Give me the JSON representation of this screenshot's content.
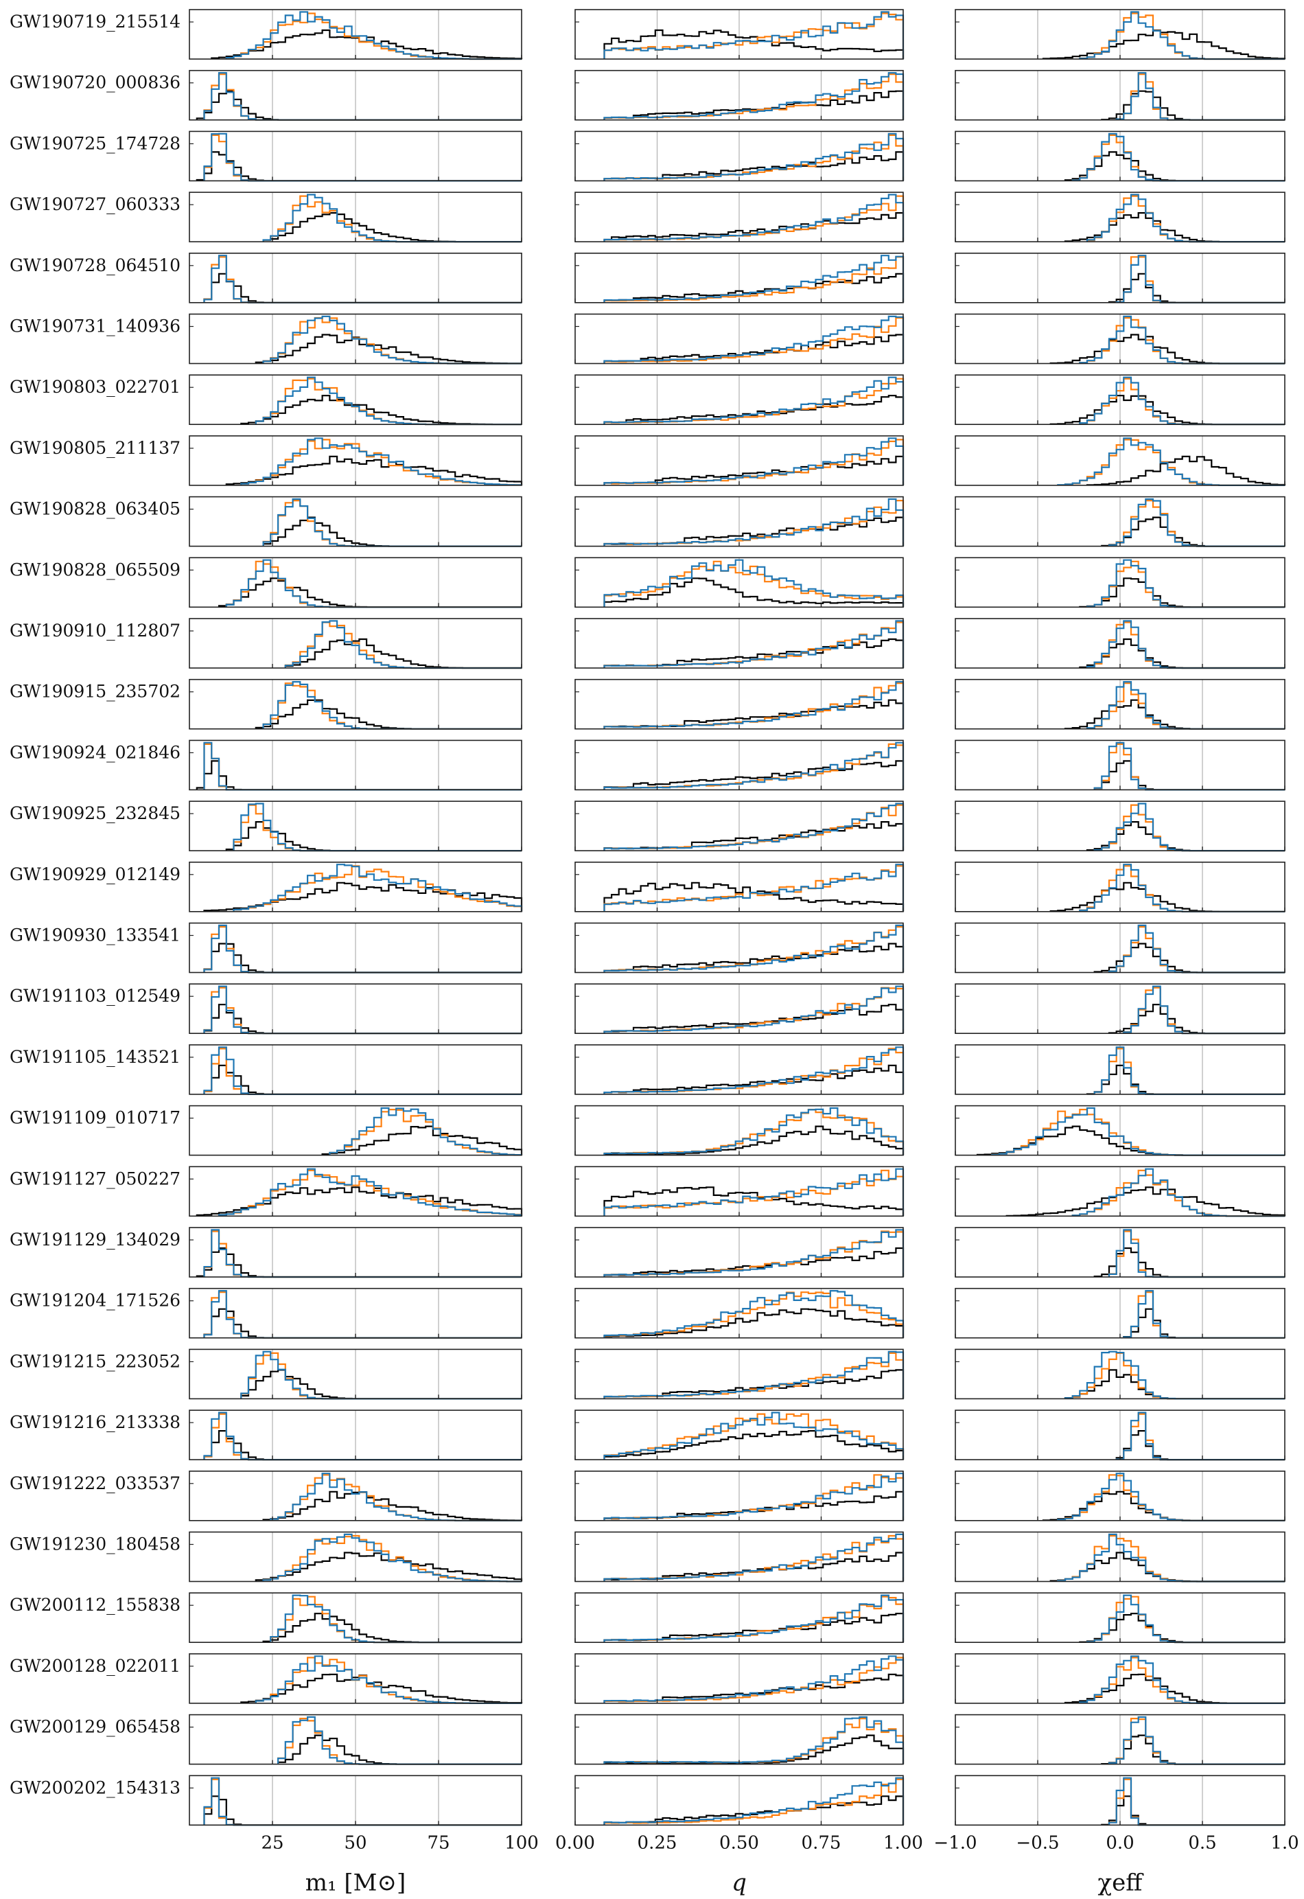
{
  "events": [
    {
      "label": "GW190719_215514",
      "m1": {
        "c": 33,
        "w": 8,
        "skew": 0.6
      },
      "q": {
        "kind": "flat",
        "b": 0.55
      },
      "chi": {
        "c": 0.12,
        "w": 0.12,
        "bc": 0.28,
        "bw": 0.25
      }
    },
    {
      "label": "GW190720_000836",
      "m1": {
        "c": 9,
        "w": 2,
        "skew": 0.5
      },
      "q": {
        "kind": "rise",
        "b": 0.3
      },
      "chi": {
        "c": 0.14,
        "w": 0.05,
        "bc": 0.15,
        "bw": 0.08
      }
    },
    {
      "label": "GW190725_174728",
      "m1": {
        "c": 8,
        "w": 1.5,
        "skew": 0.6
      },
      "q": {
        "kind": "rise",
        "b": 0.45
      },
      "chi": {
        "c": -0.04,
        "w": 0.08,
        "bc": -0.02,
        "bw": 0.11
      }
    },
    {
      "label": "GW190727_060333",
      "m1": {
        "c": 36,
        "w": 5,
        "skew": 0.4
      },
      "q": {
        "kind": "rise",
        "b": 0.2
      },
      "chi": {
        "c": 0.08,
        "w": 0.1,
        "bc": 0.1,
        "bw": 0.15
      }
    },
    {
      "label": "GW190728_064510",
      "m1": {
        "c": 9,
        "w": 1.5,
        "skew": 0.4
      },
      "q": {
        "kind": "rise",
        "b": 0.3
      },
      "chi": {
        "c": 0.12,
        "w": 0.04,
        "bc": 0.12,
        "bw": 0.06
      }
    },
    {
      "label": "GW190731_140936",
      "m1": {
        "c": 38,
        "w": 6,
        "skew": 0.6
      },
      "q": {
        "kind": "rise",
        "b": 0.35
      },
      "chi": {
        "c": 0.06,
        "w": 0.1,
        "bc": 0.08,
        "bw": 0.16
      }
    },
    {
      "label": "GW190803_022701",
      "m1": {
        "c": 35,
        "w": 6,
        "skew": 0.5
      },
      "q": {
        "kind": "rise",
        "b": 0.25
      },
      "chi": {
        "c": 0.04,
        "w": 0.1,
        "bc": 0.05,
        "bw": 0.15
      }
    },
    {
      "label": "GW190805_211137",
      "m1": {
        "c": 40,
        "w": 9,
        "skew": 0.7
      },
      "q": {
        "kind": "rise",
        "b": 0.4
      },
      "chi": {
        "c": 0.1,
        "w": 0.15,
        "bc": 0.42,
        "bw": 0.2
      }
    },
    {
      "label": "GW190828_063405",
      "m1": {
        "c": 31,
        "w": 3.5,
        "skew": 0.3
      },
      "q": {
        "kind": "rise",
        "b": 0.55
      },
      "chi": {
        "c": 0.18,
        "w": 0.08,
        "bc": 0.2,
        "bw": 0.1
      }
    },
    {
      "label": "GW190828_065509",
      "m1": {
        "c": 22,
        "w": 4,
        "skew": 0.3
      },
      "q": {
        "kind": "peak",
        "pc": 0.38,
        "pw": 0.1
      },
      "chi": {
        "c": 0.06,
        "w": 0.08,
        "bc": 0.08,
        "bw": 0.1
      }
    },
    {
      "label": "GW190910_112807",
      "m1": {
        "c": 42,
        "w": 5,
        "skew": 0.3
      },
      "q": {
        "kind": "rise",
        "b": 0.5
      },
      "chi": {
        "c": 0.03,
        "w": 0.08,
        "bc": 0.04,
        "bw": 0.1
      }
    },
    {
      "label": "GW190915_235702",
      "m1": {
        "c": 32,
        "w": 4,
        "skew": 0.4
      },
      "q": {
        "kind": "rise",
        "b": 0.55
      },
      "chi": {
        "c": 0.05,
        "w": 0.08,
        "bc": 0.04,
        "bw": 0.12
      }
    },
    {
      "label": "GW190924_021846",
      "m1": {
        "c": 6,
        "w": 1,
        "skew": 0.5
      },
      "q": {
        "kind": "rise",
        "b": 0.3
      },
      "chi": {
        "c": 0.0,
        "w": 0.05,
        "bc": 0.01,
        "bw": 0.06
      }
    },
    {
      "label": "GW190925_232845",
      "m1": {
        "c": 19,
        "w": 2.5,
        "skew": 0.5
      },
      "q": {
        "kind": "rise",
        "b": 0.6
      },
      "chi": {
        "c": 0.1,
        "w": 0.08,
        "bc": 0.1,
        "bw": 0.1
      }
    },
    {
      "label": "GW190929_012149",
      "m1": {
        "c": 45,
        "w": 12,
        "skew": 0.8
      },
      "q": {
        "kind": "flat",
        "b": 0.5
      },
      "chi": {
        "c": 0.04,
        "w": 0.1,
        "bc": 0.05,
        "bw": 0.16
      }
    },
    {
      "label": "GW190930_133541",
      "m1": {
        "c": 9,
        "w": 1.5,
        "skew": 0.5
      },
      "q": {
        "kind": "rise",
        "b": 0.3
      },
      "chi": {
        "c": 0.14,
        "w": 0.07,
        "bc": 0.14,
        "bw": 0.1
      }
    },
    {
      "label": "GW191103_012549",
      "m1": {
        "c": 9,
        "w": 1.5,
        "skew": 0.5
      },
      "q": {
        "kind": "rise",
        "b": 0.3
      },
      "chi": {
        "c": 0.2,
        "w": 0.06,
        "bc": 0.21,
        "bw": 0.09
      }
    },
    {
      "label": "GW191105_143521",
      "m1": {
        "c": 9,
        "w": 1.5,
        "skew": 0.5
      },
      "q": {
        "kind": "rise",
        "b": 0.3
      },
      "chi": {
        "c": -0.01,
        "w": 0.05,
        "bc": 0.0,
        "bw": 0.06
      }
    },
    {
      "label": "GW191109_010717",
      "m1": {
        "c": 62,
        "w": 8,
        "skew": 0.3
      },
      "q": {
        "kind": "mid",
        "pc": 0.75,
        "pw": 0.15
      },
      "chi": {
        "c": -0.25,
        "w": 0.18,
        "bc": -0.28,
        "bw": 0.2
      }
    },
    {
      "label": "GW191127_050227",
      "m1": {
        "c": 36,
        "w": 10,
        "skew": 0.9
      },
      "q": {
        "kind": "flat",
        "b": 0.5
      },
      "chi": {
        "c": 0.15,
        "w": 0.15,
        "bc": 0.2,
        "bw": 0.3
      }
    },
    {
      "label": "GW191129_134029",
      "m1": {
        "c": 8,
        "w": 1.5,
        "skew": 0.5
      },
      "q": {
        "kind": "rise",
        "b": 0.3
      },
      "chi": {
        "c": 0.05,
        "w": 0.04,
        "bc": 0.06,
        "bw": 0.07
      }
    },
    {
      "label": "GW191204_171526",
      "m1": {
        "c": 9,
        "w": 1.5,
        "skew": 0.4
      },
      "q": {
        "kind": "mid",
        "pc": 0.7,
        "pw": 0.2
      },
      "chi": {
        "c": 0.16,
        "w": 0.04,
        "bc": 0.17,
        "bw": 0.05
      }
    },
    {
      "label": "GW191215_223052",
      "m1": {
        "c": 23,
        "w": 3,
        "skew": 0.4
      },
      "q": {
        "kind": "rise",
        "b": 0.45
      },
      "chi": {
        "c": -0.02,
        "w": 0.1,
        "bc": -0.02,
        "bw": 0.11
      }
    },
    {
      "label": "GW191216_213338",
      "m1": {
        "c": 9,
        "w": 1.5,
        "skew": 0.5
      },
      "q": {
        "kind": "mid",
        "pc": 0.62,
        "pw": 0.22
      },
      "chi": {
        "c": 0.12,
        "w": 0.04,
        "bc": 0.12,
        "bw": 0.05
      }
    },
    {
      "label": "GW191222_033537",
      "m1": {
        "c": 41,
        "w": 6,
        "skew": 0.6
      },
      "q": {
        "kind": "rise",
        "b": 0.5
      },
      "chi": {
        "c": -0.02,
        "w": 0.12,
        "bc": -0.03,
        "bw": 0.14
      }
    },
    {
      "label": "GW191230_180458",
      "m1": {
        "c": 44,
        "w": 8,
        "skew": 0.6
      },
      "q": {
        "kind": "rise",
        "b": 0.45
      },
      "chi": {
        "c": -0.02,
        "w": 0.12,
        "bc": -0.02,
        "bw": 0.14
      }
    },
    {
      "label": "GW200112_155838",
      "m1": {
        "c": 34,
        "w": 4,
        "skew": 0.4
      },
      "q": {
        "kind": "rise",
        "b": 0.45
      },
      "chi": {
        "c": 0.06,
        "w": 0.08,
        "bc": 0.07,
        "bw": 0.1
      }
    },
    {
      "label": "GW200128_022011",
      "m1": {
        "c": 38,
        "w": 7,
        "skew": 0.6
      },
      "q": {
        "kind": "rise",
        "b": 0.45
      },
      "chi": {
        "c": 0.08,
        "w": 0.11,
        "bc": 0.13,
        "bw": 0.16
      }
    },
    {
      "label": "GW200129_065458",
      "m1": {
        "c": 34,
        "w": 3,
        "skew": 0.4
      },
      "q": {
        "kind": "mid",
        "pc": 0.88,
        "pw": 0.1
      },
      "chi": {
        "c": 0.12,
        "w": 0.06,
        "bc": 0.12,
        "bw": 0.07
      }
    },
    {
      "label": "GW200202_154313",
      "m1": {
        "c": 7,
        "w": 1,
        "skew": 0.4
      },
      "q": {
        "kind": "rise",
        "b": 0.4
      },
      "chi": {
        "c": 0.03,
        "w": 0.03,
        "bc": 0.03,
        "bw": 0.04
      }
    }
  ],
  "chart_data": {
    "type": "histogram-grid",
    "columns": [
      {
        "key": "m1",
        "xlabel": "m₁ [M⊙]",
        "xlim": [
          0,
          100
        ],
        "ticks": [
          25,
          50,
          75,
          100
        ],
        "tick_labels": [
          "25",
          "50",
          "75",
          "100"
        ],
        "grid": [
          25,
          50,
          75
        ]
      },
      {
        "key": "q",
        "xlabel": "q",
        "xlim": [
          0,
          1
        ],
        "ticks": [
          0.0,
          0.25,
          0.5,
          0.75,
          1.0
        ],
        "tick_labels": [
          "0.00",
          "0.25",
          "0.50",
          "0.75",
          "1.00"
        ],
        "grid": [
          0.25,
          0.5,
          0.75
        ]
      },
      {
        "key": "chi",
        "xlabel": "χeff",
        "xlim": [
          -1,
          1
        ],
        "ticks": [
          -1.0,
          -0.5,
          0.0,
          0.5,
          1.0
        ],
        "tick_labels": [
          "−1.0",
          "−0.5",
          "0.0",
          "0.5",
          "1.0"
        ],
        "grid": [
          -0.5,
          0.0,
          0.5
        ]
      }
    ],
    "series_colors": [
      "#1f77b4",
      "#ff7f0e",
      "#000000"
    ],
    "grid_color": "#b0b0b0"
  }
}
